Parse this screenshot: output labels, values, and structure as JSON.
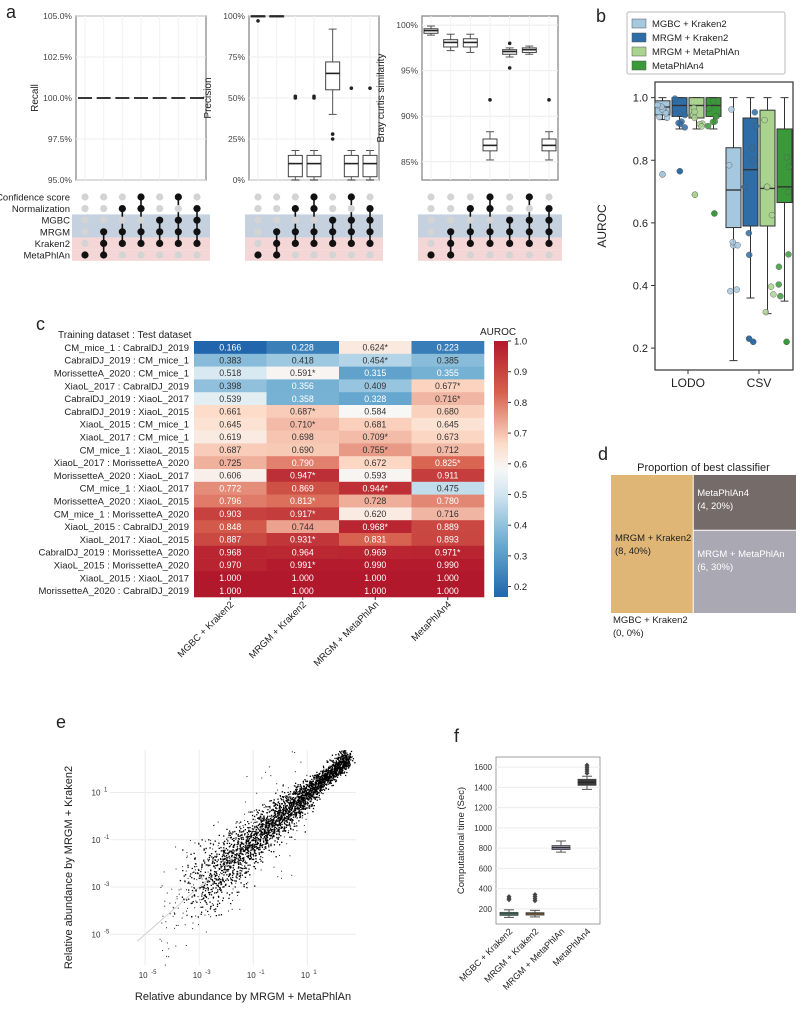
{
  "chart_data": [
    {
      "panel": "a",
      "type": "box",
      "subpanels": [
        {
          "ylabel": "Recall",
          "yticks": [
            "105.0%",
            "102.5%",
            "100.0%",
            "97.5%",
            "95.0%"
          ],
          "ylim": [
            95,
            105
          ],
          "values": [
            100,
            100,
            100,
            100,
            100,
            100,
            100
          ]
        },
        {
          "ylabel": "Precision",
          "yticks": [
            "100%",
            "75%",
            "50%",
            "25%",
            "0%"
          ],
          "ylim": [
            0,
            100
          ],
          "boxes": [
            {
              "q1": 100,
              "med": 100,
              "q3": 100,
              "lo": 100,
              "hi": 100,
              "outliers": [
                97
              ]
            },
            {
              "q1": 100,
              "med": 100,
              "q3": 100,
              "lo": 100,
              "hi": 100,
              "outliers": []
            },
            {
              "q1": 2,
              "med": 10,
              "q3": 15,
              "lo": 0,
              "hi": 18,
              "outliers": [
                51,
                50
              ]
            },
            {
              "q1": 2,
              "med": 10,
              "q3": 15,
              "lo": 0,
              "hi": 18,
              "outliers": [
                50,
                51
              ]
            },
            {
              "q1": 55,
              "med": 65,
              "q3": 72,
              "lo": 40,
              "hi": 92,
              "outliers": [
                28,
                25
              ]
            },
            {
              "q1": 2,
              "med": 10,
              "q3": 15,
              "lo": 0,
              "hi": 18,
              "outliers": [
                56
              ]
            },
            {
              "q1": 2,
              "med": 10,
              "q3": 15,
              "lo": 0,
              "hi": 18,
              "outliers": [
                56
              ]
            }
          ]
        },
        {
          "ylabel": "Bray curtis similarity",
          "yticks": [
            "100%",
            "95%",
            "90%",
            "85%"
          ],
          "ylim": [
            83,
            101
          ],
          "boxes": [
            {
              "q1": 99.1,
              "med": 99.4,
              "q3": 99.6,
              "lo": 98.9,
              "hi": 99.9,
              "outliers": []
            },
            {
              "q1": 97.6,
              "med": 98.1,
              "q3": 98.4,
              "lo": 97.2,
              "hi": 99.0,
              "outliers": []
            },
            {
              "q1": 97.6,
              "med": 98.1,
              "q3": 98.5,
              "lo": 97.0,
              "hi": 99.0,
              "outliers": []
            },
            {
              "q1": 86.2,
              "med": 86.8,
              "q3": 87.5,
              "lo": 85.2,
              "hi": 88.3,
              "outliers": [
                91.8
              ]
            },
            {
              "q1": 96.8,
              "med": 97.1,
              "q3": 97.3,
              "lo": 96.5,
              "hi": 97.5,
              "outliers": [
                95.3,
                98.0
              ]
            },
            {
              "q1": 97.0,
              "med": 97.3,
              "q3": 97.5,
              "lo": 96.8,
              "hi": 97.7,
              "outliers": []
            },
            {
              "q1": 86.2,
              "med": 86.8,
              "q3": 87.5,
              "lo": 85.2,
              "hi": 88.3,
              "outliers": [
                91.8
              ]
            }
          ]
        }
      ],
      "matrix_rows": [
        "Confidence score",
        "Normalization",
        "MGBC",
        "MRGM",
        "Kraken2",
        "MetaPhlAn"
      ],
      "matrix_row_colors": [
        "#ffffff",
        "#ffffff",
        "#c5d1df",
        "#c5d1df",
        "#f5d6d6",
        "#f5d6d6"
      ],
      "matrix_columns": [
        [
          5
        ],
        [
          3,
          4,
          5
        ],
        [
          1,
          3,
          4
        ],
        [
          0,
          1,
          3,
          4
        ],
        [
          2,
          3,
          4
        ],
        [
          0,
          2,
          3,
          4
        ],
        [
          1,
          2,
          3,
          4
        ]
      ]
    },
    {
      "panel": "b",
      "type": "box",
      "ylabel": "AUROC",
      "categories": [
        "LODO",
        "CSV"
      ],
      "yticks": [
        "1.0",
        "0.8",
        "0.6",
        "0.4",
        "0.2"
      ],
      "ylim": [
        0.13,
        1.05
      ],
      "legend": [
        "MGBC + Kraken2",
        "MRGM + Kraken2",
        "MRGM + MetaPhlAn",
        "MetaPhlAn4"
      ],
      "colors": [
        "#a6c8df",
        "#2f6da6",
        "#a9d38f",
        "#3a9a3a"
      ],
      "groups": [
        [
          {
            "q1": 0.945,
            "med": 0.97,
            "q3": 0.99,
            "lo": 0.93,
            "hi": 1.0,
            "outliers": [
              0.755
            ]
          },
          {
            "q1": 0.94,
            "med": 0.975,
            "q3": 1.0,
            "lo": 0.9,
            "hi": 1.0,
            "outliers": [
              0.765
            ]
          },
          {
            "q1": 0.935,
            "med": 0.975,
            "q3": 1.0,
            "lo": 0.9,
            "hi": 1.0,
            "outliers": [
              0.69
            ]
          },
          {
            "q1": 0.94,
            "med": 0.975,
            "q3": 1.0,
            "lo": 0.9,
            "hi": 1.0,
            "outliers": [
              0.63
            ]
          }
        ],
        [
          {
            "q1": 0.585,
            "med": 0.705,
            "q3": 0.84,
            "lo": 0.16,
            "hi": 1.0,
            "outliers": []
          },
          {
            "q1": 0.59,
            "med": 0.77,
            "q3": 0.935,
            "lo": 0.36,
            "hi": 1.0,
            "outliers": [
              0.23,
              0.22
            ]
          },
          {
            "q1": 0.59,
            "med": 0.71,
            "q3": 0.96,
            "lo": 0.31,
            "hi": 1.0,
            "outliers": []
          },
          {
            "q1": 0.665,
            "med": 0.715,
            "q3": 0.9,
            "lo": 0.35,
            "hi": 1.0,
            "outliers": [
              0.22
            ]
          }
        ]
      ]
    },
    {
      "panel": "c",
      "type": "heatmap",
      "title": "Training dataset : Test dataset",
      "colorbar_label": "AUROC",
      "colorbar_ticks": [
        "1.0",
        "0.9",
        "0.8",
        "0.7",
        "0.6",
        "0.5",
        "0.4",
        "0.3",
        "0.2"
      ],
      "range": [
        0.166,
        1.0
      ],
      "columns": [
        "MGBC + Kraken2",
        "MRGM + Kraken2",
        "MRGM + MetaPhlAn",
        "MetaPhlAn4"
      ],
      "rows": [
        {
          "label": "CM_mice_1 : CabralDJ_2019",
          "values": [
            0.166,
            0.228,
            0.624,
            0.223
          ],
          "labels": [
            "0.166",
            "0.228",
            "0.624*",
            "0.223"
          ]
        },
        {
          "label": "CabralDJ_2019 : CM_mice_1",
          "values": [
            0.383,
            0.418,
            0.454,
            0.385
          ],
          "labels": [
            "0.383",
            "0.418",
            "0.454*",
            "0.385"
          ]
        },
        {
          "label": "MorissetteA_2020 : CM_mice_1",
          "values": [
            0.518,
            0.591,
            0.315,
            0.355
          ],
          "labels": [
            "0.518",
            "0.591*",
            "0.315",
            "0.355"
          ]
        },
        {
          "label": "XiaoL_2017 : CabralDJ_2019",
          "values": [
            0.398,
            0.356,
            0.409,
            0.677
          ],
          "labels": [
            "0.398",
            "0.356",
            "0.409",
            "0.677*"
          ]
        },
        {
          "label": "CabralDJ_2019 : XiaoL_2017",
          "values": [
            0.539,
            0.358,
            0.328,
            0.716
          ],
          "labels": [
            "0.539",
            "0.358",
            "0.328",
            "0.716*"
          ]
        },
        {
          "label": "CabralDJ_2019 : XiaoL_2015",
          "values": [
            0.661,
            0.687,
            0.584,
            0.68
          ],
          "labels": [
            "0.661",
            "0.687*",
            "0.584",
            "0.680"
          ]
        },
        {
          "label": "XiaoL_2015 : CM_mice_1",
          "values": [
            0.645,
            0.71,
            0.681,
            0.645
          ],
          "labels": [
            "0.645",
            "0.710*",
            "0.681",
            "0.645"
          ]
        },
        {
          "label": "XiaoL_2017 : CM_mice_1",
          "values": [
            0.619,
            0.698,
            0.709,
            0.673
          ],
          "labels": [
            "0.619",
            "0.698",
            "0.709*",
            "0.673"
          ]
        },
        {
          "label": "CM_mice_1 : XiaoL_2015",
          "values": [
            0.687,
            0.69,
            0.755,
            0.712
          ],
          "labels": [
            "0.687",
            "0.690",
            "0.755*",
            "0.712"
          ]
        },
        {
          "label": "XiaoL_2017 : MorissetteA_2020",
          "values": [
            0.725,
            0.79,
            0.672,
            0.825
          ],
          "labels": [
            "0.725",
            "0.790",
            "0.672",
            "0.825*"
          ]
        },
        {
          "label": "MorissetteA_2020 : XiaoL_2017",
          "values": [
            0.606,
            0.947,
            0.593,
            0.911
          ],
          "labels": [
            "0.606",
            "0.947*",
            "0.593",
            "0.911"
          ]
        },
        {
          "label": "CM_mice_1 : XiaoL_2017",
          "values": [
            0.772,
            0.869,
            0.944,
            0.475
          ],
          "labels": [
            "0.772",
            "0.869",
            "0.944*",
            "0.475"
          ]
        },
        {
          "label": "MorissetteA_2020 : XiaoL_2015",
          "values": [
            0.796,
            0.813,
            0.728,
            0.78
          ],
          "labels": [
            "0.796",
            "0.813*",
            "0.728",
            "0.780"
          ]
        },
        {
          "label": "CM_mice_1 : MorissetteA_2020",
          "values": [
            0.903,
            0.917,
            0.62,
            0.716
          ],
          "labels": [
            "0.903",
            "0.917*",
            "0.620",
            "0.716"
          ]
        },
        {
          "label": "XiaoL_2015 : CabralDJ_2019",
          "values": [
            0.848,
            0.744,
            0.968,
            0.889
          ],
          "labels": [
            "0.848",
            "0.744",
            "0.968*",
            "0.889"
          ]
        },
        {
          "label": "XiaoL_2017 : XiaoL_2015",
          "values": [
            0.887,
            0.931,
            0.831,
            0.893
          ],
          "labels": [
            "0.887",
            "0.931*",
            "0.831",
            "0.893"
          ]
        },
        {
          "label": "CabralDJ_2019 : MorissetteA_2020",
          "values": [
            0.968,
            0.964,
            0.969,
            0.971
          ],
          "labels": [
            "0.968",
            "0.964",
            "0.969",
            "0.971*"
          ]
        },
        {
          "label": "XiaoL_2015 : MorissetteA_2020",
          "values": [
            0.97,
            0.991,
            0.99,
            0.99
          ],
          "labels": [
            "0.970",
            "0.991*",
            "0.990",
            "0.990"
          ]
        },
        {
          "label": "XiaoL_2015 : XiaoL_2017",
          "values": [
            1.0,
            1.0,
            1.0,
            1.0
          ],
          "labels": [
            "1.000",
            "1.000",
            "1.000",
            "1.000"
          ]
        },
        {
          "label": "MorissetteA_2020 : CabralDJ_2019",
          "values": [
            1.0,
            1.0,
            1.0,
            1.0
          ],
          "labels": [
            "1.000",
            "1.000",
            "1.000",
            "1.000"
          ]
        }
      ]
    },
    {
      "panel": "d",
      "type": "treemap",
      "title": "Proportion of best classifier",
      "items": [
        {
          "name": "MRGM + Kraken2",
          "detail": "(8, 40%)",
          "count": 8,
          "color": "#dfb676"
        },
        {
          "name": "MetaPhlAn4",
          "detail": "(4, 20%)",
          "count": 4,
          "color": "#756b69"
        },
        {
          "name": "MRGM + MetaPhlAn",
          "detail": "(6, 30%)",
          "count": 6,
          "color": "#a9a8b3"
        },
        {
          "name": "MGBC + Kraken2",
          "detail": "(0, 0%)",
          "count": 0,
          "color": "#ffffff"
        }
      ]
    },
    {
      "panel": "e",
      "type": "scatter",
      "xlabel": "Relative abundance by MRGM + MetaPhlAn",
      "ylabel": "Relative abundance by MRGM + Kraken2",
      "x_exponents": [
        -5,
        -3,
        -1,
        1
      ],
      "y_exponents": [
        -5,
        -3,
        -1,
        1
      ],
      "xlim_log10": [
        -6.3,
        2.8
      ],
      "ylim_log10": [
        -6.3,
        2.8
      ],
      "tick_base": "10"
    },
    {
      "panel": "f",
      "type": "box",
      "ylabel": "Computational time (Sec)",
      "categories": [
        "MGBC + Kraken2",
        "MRGM + Kraken2",
        "MRGM + MetaPhlAn",
        "MetaPhlAn4"
      ],
      "yticks": [
        "1600",
        "1400",
        "1200",
        "1000",
        "800",
        "600",
        "400",
        "200"
      ],
      "ylim": [
        50,
        1700
      ],
      "colors": [
        "#5b9e8b",
        "#d9a24a",
        "#8b8fa6",
        "#3b3b3b"
      ],
      "boxes": [
        {
          "q1": 135,
          "med": 150,
          "q3": 165,
          "lo": 115,
          "hi": 190,
          "outliers": [
            290,
            305,
            320
          ]
        },
        {
          "q1": 138,
          "med": 150,
          "q3": 162,
          "lo": 120,
          "hi": 185,
          "outliers": [
            280,
            300,
            320,
            340
          ]
        },
        {
          "q1": 785,
          "med": 805,
          "q3": 825,
          "lo": 760,
          "hi": 870,
          "outliers": []
        },
        {
          "q1": 1420,
          "med": 1450,
          "q3": 1480,
          "lo": 1380,
          "hi": 1510,
          "outliers": [
            1540,
            1560,
            1580,
            1600,
            1620
          ]
        }
      ]
    }
  ]
}
